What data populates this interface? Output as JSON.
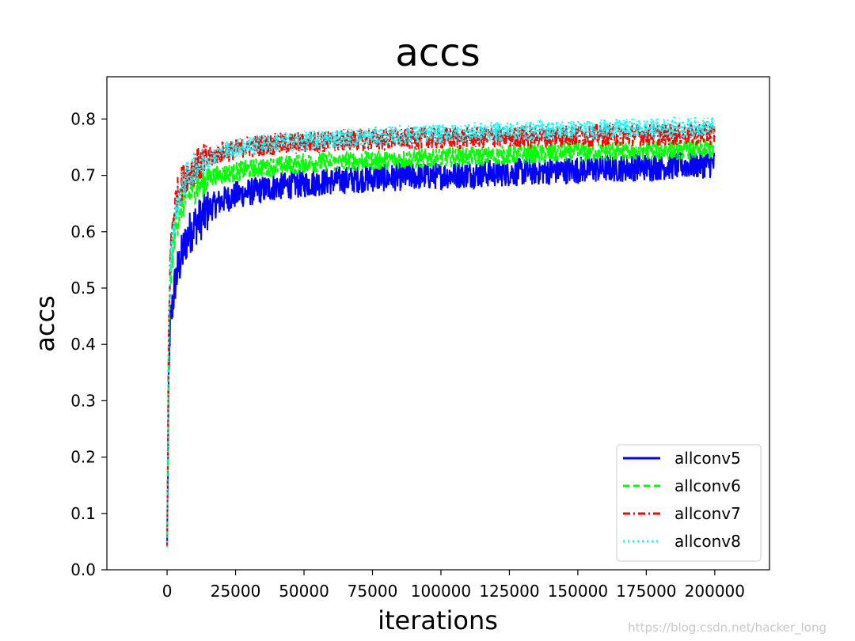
{
  "chart_data": {
    "type": "line",
    "title": "accs",
    "xlabel": "iterations",
    "ylabel": "accs",
    "xlim": [
      -22000,
      220000
    ],
    "ylim": [
      0.0,
      0.875
    ],
    "xticks": [
      0,
      25000,
      50000,
      75000,
      100000,
      125000,
      150000,
      175000,
      200000
    ],
    "yticks": [
      0.0,
      0.1,
      0.2,
      0.3,
      0.4,
      0.5,
      0.6,
      0.7,
      0.8
    ],
    "xtick_labels": [
      "0",
      "25000",
      "50000",
      "75000",
      "100000",
      "125000",
      "150000",
      "175000",
      "200000"
    ],
    "ytick_labels": [
      "0.0",
      "0.1",
      "0.2",
      "0.3",
      "0.4",
      "0.5",
      "0.6",
      "0.7",
      "0.8"
    ],
    "grid": false,
    "legend_position": "lower-right",
    "series": [
      {
        "name": "allconv5",
        "color": "#0000ff",
        "style": "solid",
        "x": [
          0,
          500,
          1000,
          2000,
          3000,
          5000,
          7500,
          10000,
          15000,
          20000,
          25000,
          30000,
          40000,
          50000,
          60000,
          75000,
          100000,
          125000,
          150000,
          175000,
          200000
        ],
        "y": [
          0.04,
          0.3,
          0.43,
          0.48,
          0.52,
          0.56,
          0.6,
          0.62,
          0.645,
          0.66,
          0.67,
          0.675,
          0.685,
          0.69,
          0.695,
          0.7,
          0.705,
          0.71,
          0.715,
          0.72,
          0.725
        ],
        "noise": 0.025
      },
      {
        "name": "allconv6",
        "color": "#00ff00",
        "style": "dashed",
        "x": [
          0,
          500,
          1000,
          2000,
          3000,
          5000,
          7500,
          10000,
          15000,
          20000,
          25000,
          30000,
          40000,
          50000,
          60000,
          75000,
          100000,
          125000,
          150000,
          175000,
          200000
        ],
        "y": [
          0.04,
          0.35,
          0.5,
          0.57,
          0.61,
          0.65,
          0.67,
          0.685,
          0.7,
          0.705,
          0.71,
          0.715,
          0.72,
          0.725,
          0.728,
          0.73,
          0.735,
          0.74,
          0.745,
          0.748,
          0.75
        ],
        "noise": 0.018
      },
      {
        "name": "allconv7",
        "color": "#ff0000",
        "style": "dashdot",
        "x": [
          0,
          500,
          1000,
          2000,
          3000,
          5000,
          7500,
          10000,
          15000,
          20000,
          25000,
          30000,
          40000,
          50000,
          60000,
          75000,
          100000,
          125000,
          150000,
          175000,
          200000
        ],
        "y": [
          0.04,
          0.4,
          0.55,
          0.62,
          0.66,
          0.69,
          0.71,
          0.72,
          0.735,
          0.745,
          0.75,
          0.755,
          0.76,
          0.762,
          0.765,
          0.768,
          0.77,
          0.772,
          0.775,
          0.776,
          0.778
        ],
        "noise": 0.02
      },
      {
        "name": "allconv8",
        "color": "#00ffff",
        "style": "dotted",
        "x": [
          0,
          500,
          1000,
          2000,
          3000,
          5000,
          7500,
          10000,
          15000,
          20000,
          25000,
          30000,
          40000,
          50000,
          60000,
          75000,
          100000,
          125000,
          150000,
          175000,
          200000
        ],
        "y": [
          0.04,
          0.38,
          0.53,
          0.6,
          0.64,
          0.68,
          0.705,
          0.72,
          0.735,
          0.745,
          0.752,
          0.757,
          0.762,
          0.765,
          0.768,
          0.772,
          0.778,
          0.782,
          0.785,
          0.787,
          0.79
        ],
        "noise": 0.018
      }
    ]
  },
  "watermark": "https://blog.csdn.net/hacker_long"
}
